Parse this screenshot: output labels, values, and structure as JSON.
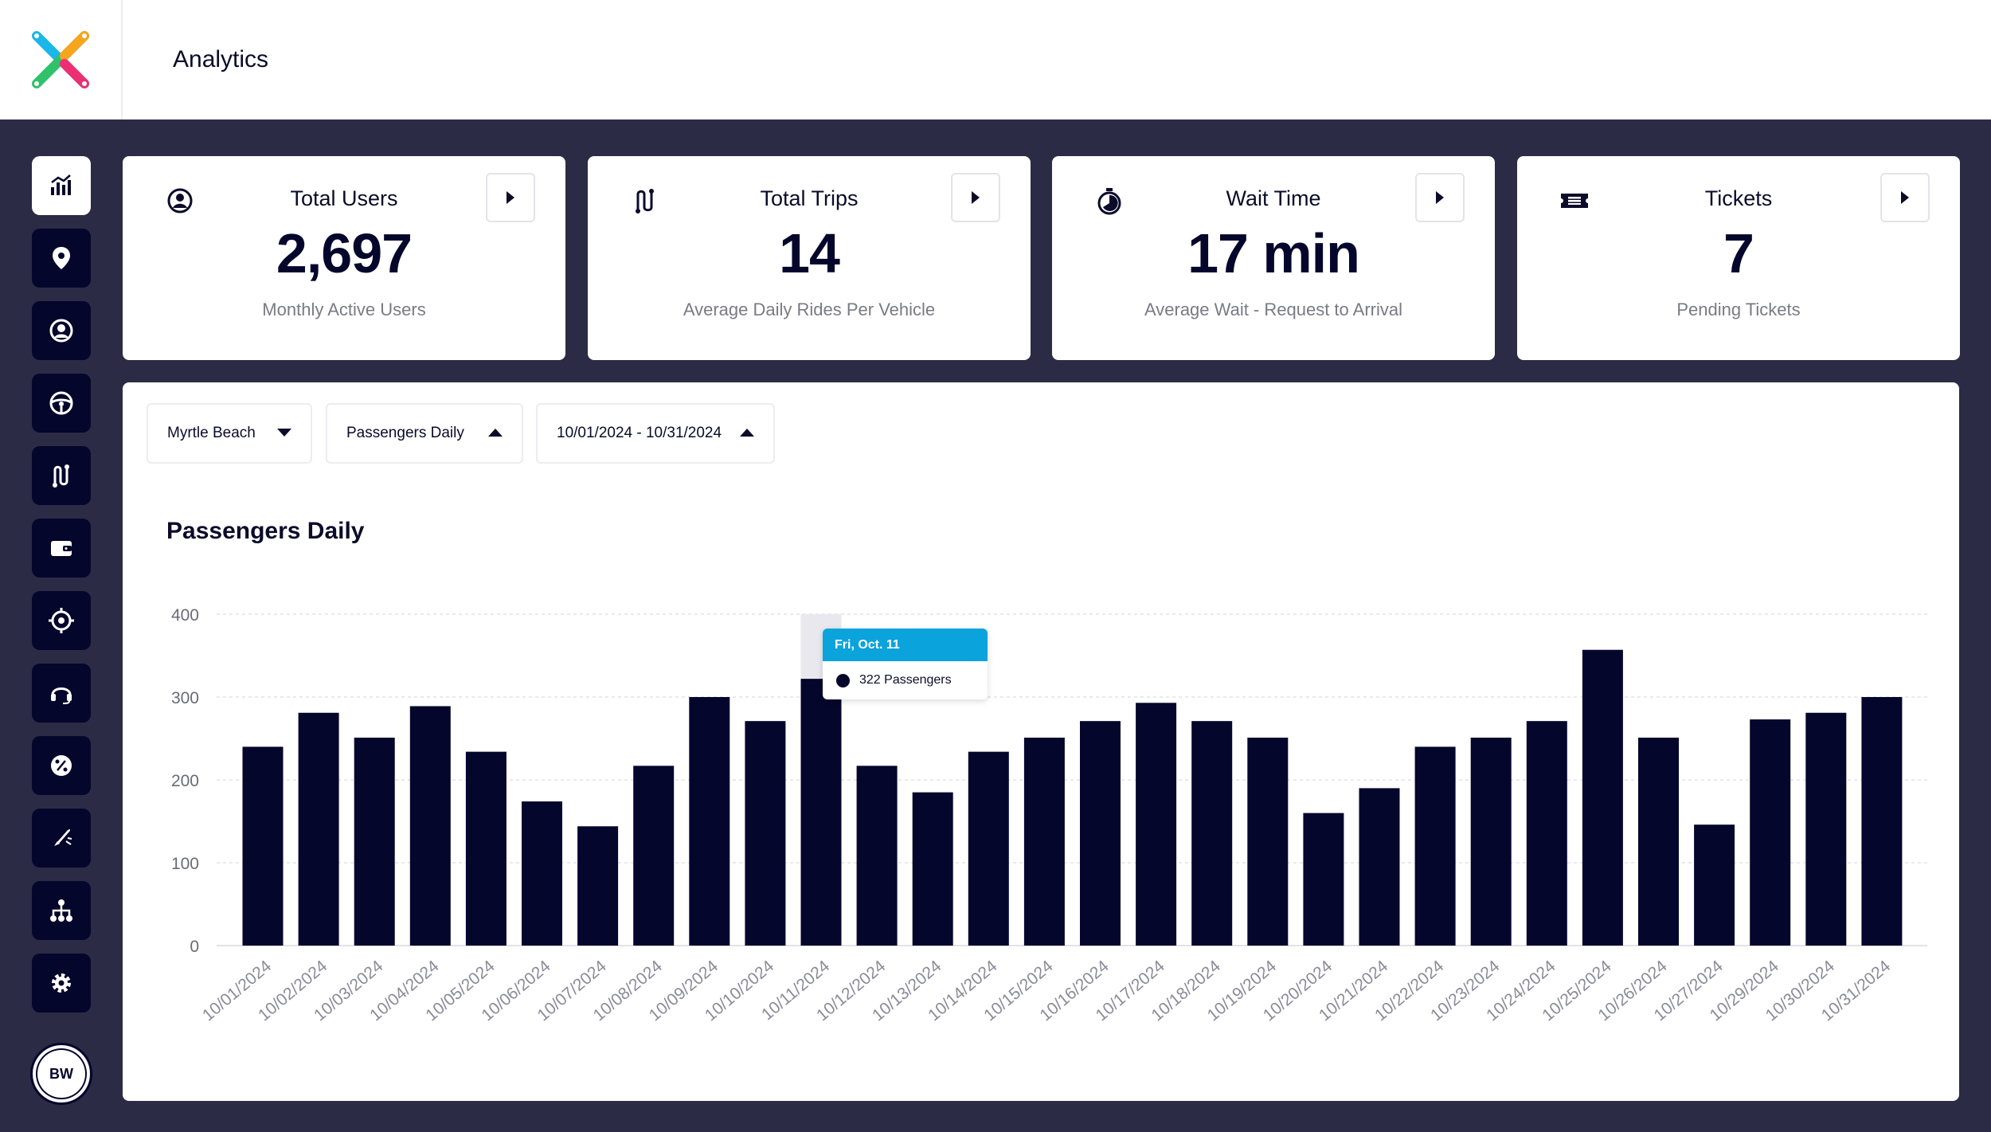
{
  "header": {
    "title": "Analytics",
    "logo_icon": "brand-x-logo"
  },
  "sidebar": {
    "items": [
      {
        "name": "analytics",
        "icon": "bar-chart-icon",
        "active": true
      },
      {
        "name": "map",
        "icon": "location-pin-icon"
      },
      {
        "name": "users",
        "icon": "user-circle-icon"
      },
      {
        "name": "drivers",
        "icon": "steering-wheel-icon"
      },
      {
        "name": "trips",
        "icon": "route-icon"
      },
      {
        "name": "wallet",
        "icon": "wallet-icon"
      },
      {
        "name": "zones",
        "icon": "target-icon"
      },
      {
        "name": "support",
        "icon": "headset-icon"
      },
      {
        "name": "promotions",
        "icon": "percent-badge-icon"
      },
      {
        "name": "campaigns",
        "icon": "rocket-icon"
      },
      {
        "name": "organization",
        "icon": "org-chart-icon"
      },
      {
        "name": "settings",
        "icon": "gear-icon"
      }
    ],
    "avatar_initials": "BW"
  },
  "kpis": [
    {
      "icon": "user-circle-icon",
      "title": "Total Users",
      "value": "2,697",
      "subtitle": "Monthly Active Users"
    },
    {
      "icon": "route-icon",
      "title": "Total Trips",
      "value": "14",
      "subtitle": "Average Daily Rides Per Vehicle"
    },
    {
      "icon": "stopwatch-icon",
      "title": "Wait Time",
      "value": "17 min",
      "subtitle": "Average Wait - Request to Arrival"
    },
    {
      "icon": "ticket-icon",
      "title": "Tickets",
      "value": "7",
      "subtitle": "Pending Tickets"
    }
  ],
  "filters": {
    "location": "Myrtle Beach",
    "metric": "Passengers Daily",
    "date_range": "10/01/2024 - 10/31/2024"
  },
  "tooltip": {
    "date": "Fri, Oct. 11",
    "value": "322 Passengers",
    "accent_color": "#0aa3dc"
  },
  "colors": {
    "bar": "#05062c",
    "background_dark": "#2b2b45",
    "hover_band": "#e8e8ee"
  },
  "chart_data": {
    "type": "bar",
    "title": "Passengers Daily",
    "xlabel": "",
    "ylabel": "",
    "ylim": [
      0,
      400
    ],
    "yticks": [
      0,
      100,
      200,
      300,
      400
    ],
    "grid": true,
    "categories": [
      "10/01/2024",
      "10/02/2024",
      "10/03/2024",
      "10/04/2024",
      "10/05/2024",
      "10/06/2024",
      "10/07/2024",
      "10/08/2024",
      "10/09/2024",
      "10/10/2024",
      "10/11/2024",
      "10/12/2024",
      "10/13/2024",
      "10/14/2024",
      "10/15/2024",
      "10/16/2024",
      "10/17/2024",
      "10/18/2024",
      "10/19/2024",
      "10/20/2024",
      "10/21/2024",
      "10/22/2024",
      "10/23/2024",
      "10/24/2024",
      "10/25/2024",
      "10/26/2024",
      "10/27/2024",
      "10/29/2024",
      "10/30/2024",
      "10/31/2024"
    ],
    "values": [
      240,
      281,
      251,
      289,
      234,
      174,
      144,
      217,
      300,
      271,
      322,
      217,
      185,
      234,
      251,
      271,
      293,
      271,
      251,
      160,
      190,
      240,
      251,
      271,
      357,
      251,
      146,
      273,
      281,
      300
    ],
    "highlight_index": 10
  }
}
